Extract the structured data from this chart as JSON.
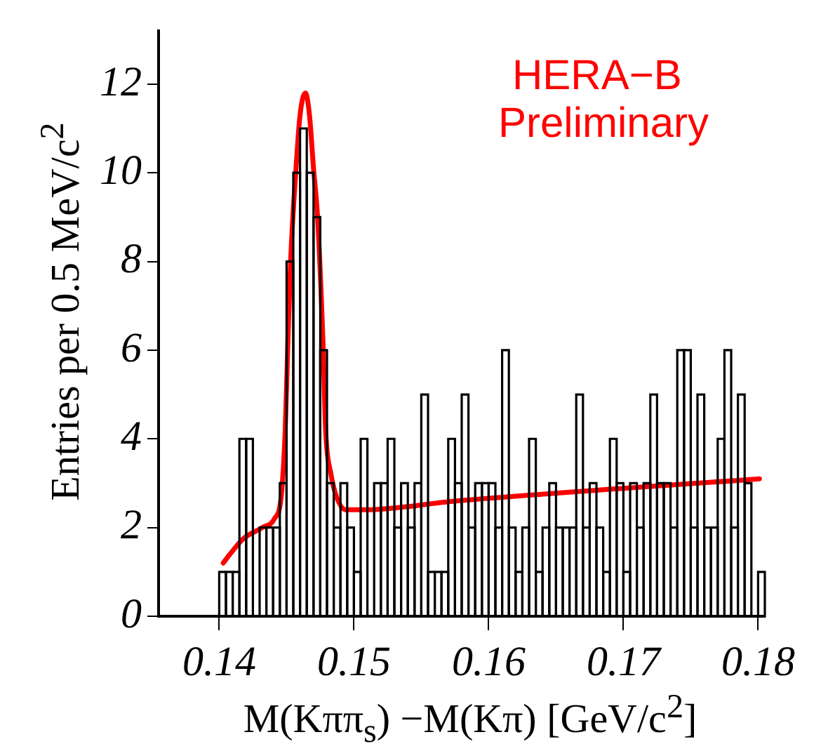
{
  "chart_data": {
    "type": "histogram",
    "xlabel": "M(Kππ$_{s}$) −M(Kπ) [GeV/c$^{2}$]",
    "ylabel": "Entries per 0.5 MeV/c$^{2}$",
    "annotations": [
      "HERA−B",
      "Preliminary"
    ],
    "bins": [
      0.14,
      0.1405,
      0.141,
      0.1415,
      0.142,
      0.1425,
      0.143,
      0.1435,
      0.144,
      0.1445,
      0.145,
      0.1455,
      0.146,
      0.1465,
      0.147,
      0.1475,
      0.148,
      0.1485,
      0.149,
      0.1495,
      0.15,
      0.1505,
      0.151,
      0.1515,
      0.152,
      0.1525,
      0.153,
      0.1535,
      0.154,
      0.1545,
      0.155,
      0.1555,
      0.156,
      0.1565,
      0.157,
      0.1575,
      0.158,
      0.1585,
      0.159,
      0.1595,
      0.16,
      0.1605,
      0.161,
      0.1615,
      0.162,
      0.1625,
      0.163,
      0.1635,
      0.164,
      0.1645,
      0.165,
      0.1655,
      0.166,
      0.1665,
      0.167,
      0.1675,
      0.168,
      0.1685,
      0.169,
      0.1695,
      0.17,
      0.1705,
      0.171,
      0.1715,
      0.172,
      0.1725,
      0.173,
      0.1735,
      0.174,
      0.1745,
      0.175,
      0.1755,
      0.176,
      0.1765,
      0.177,
      0.1775,
      0.178,
      0.1785,
      0.179,
      0.1795,
      0.18,
      0.1805
    ],
    "values": [
      1,
      1,
      1,
      4,
      4,
      0,
      2,
      2,
      2,
      3,
      8,
      10,
      11,
      10,
      9,
      6,
      3,
      2,
      3,
      2,
      1,
      4,
      0,
      3,
      3,
      4,
      2,
      3,
      2,
      3,
      5,
      1,
      1,
      1,
      4,
      3,
      5,
      2,
      3,
      3,
      3,
      2,
      6,
      2,
      1,
      2,
      4,
      1,
      2,
      3,
      2,
      2,
      2,
      5,
      2,
      3,
      2,
      1,
      4,
      3,
      1,
      3,
      2,
      3,
      5,
      3,
      3,
      2,
      6,
      6,
      2,
      5,
      2,
      2,
      4,
      6,
      2,
      5,
      3,
      0,
      1
    ],
    "color": "#000000",
    "series": [
      {
        "type": "line",
        "color": "#ff0000",
        "x": [
          0.1403,
          0.1408,
          0.1418,
          0.1432,
          0.1441,
          0.1446,
          0.1449,
          0.1451,
          0.1453,
          0.1457,
          0.146,
          0.1464,
          0.1467,
          0.147,
          0.1473,
          0.1477,
          0.1479,
          0.1483,
          0.1487,
          0.1494,
          0.1508,
          0.1576,
          0.1801
        ],
        "values": [
          1.2,
          1.4,
          1.75,
          2,
          2.2,
          2.7,
          4.2,
          6.2,
          8,
          10.1,
          11.3,
          11.8,
          11.3,
          10.1,
          9,
          6.2,
          4.2,
          3.2,
          2.7,
          2.4,
          2.4,
          2.6,
          3.1
        ]
      }
    ],
    "xlim": [
      0.1355,
      0.1805
    ],
    "xticks": [
      0.14,
      0.15,
      0.16,
      0.17,
      0.18
    ],
    "ylim": [
      0,
      13.2
    ],
    "yticks": [
      0,
      2,
      4,
      6,
      8,
      10,
      12
    ],
    "legend": false,
    "marker": "none",
    "line_style": "solid"
  }
}
